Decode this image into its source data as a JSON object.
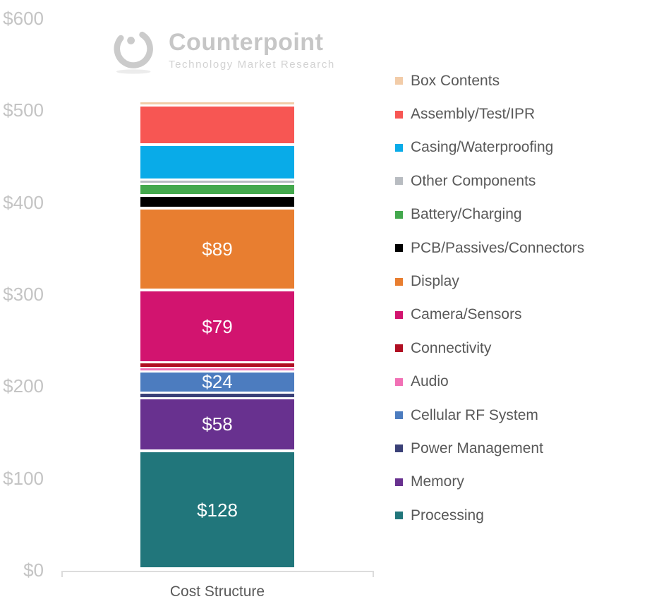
{
  "logo": {
    "name": "Counterpoint",
    "tagline": "Technology Market Research"
  },
  "chart_data": {
    "type": "bar",
    "stacked": true,
    "title": "",
    "xlabel": "Cost Structure",
    "categories": [
      "Cost Structure"
    ],
    "ylabel": "",
    "ylim": [
      0,
      600
    ],
    "grid": false,
    "ytick_prefix": "$",
    "yticks": [
      0,
      100,
      200,
      300,
      400,
      500,
      600
    ],
    "legend_position": "right",
    "legend_entries_top_to_bottom": [
      "Box Contents",
      "Assembly/Test/IPR",
      "Casing/Waterproofing",
      "Other Components",
      "Battery/Charging",
      "PCB/Passives/Connectors",
      "Display",
      "Camera/Sensors",
      "Connectivity",
      "Audio",
      "Cellular RF System",
      "Power Management",
      "Memory",
      "Processing"
    ],
    "series": [
      {
        "name": "Processing",
        "value": 128,
        "data_label": "$128",
        "color": "#21767B"
      },
      {
        "name": "Memory",
        "value": 58,
        "data_label": "$58",
        "color": "#68318F"
      },
      {
        "name": "Power Management",
        "value": 5,
        "data_label": "",
        "color": "#3A4077"
      },
      {
        "name": "Cellular RF System",
        "value": 24,
        "data_label": "$24",
        "color": "#4C7CBF"
      },
      {
        "name": "Audio",
        "value": 4,
        "data_label": "",
        "color": "#F170B5"
      },
      {
        "name": "Connectivity",
        "value": 5,
        "data_label": "",
        "color": "#B00E22"
      },
      {
        "name": "Camera/Sensors",
        "value": 79,
        "data_label": "$79",
        "color": "#D2146F"
      },
      {
        "name": "Display",
        "value": 89,
        "data_label": "$89",
        "color": "#E87E30"
      },
      {
        "name": "PCB/Passives/Connectors",
        "value": 14,
        "data_label": "",
        "color": "#000000"
      },
      {
        "name": "Battery/Charging",
        "value": 13,
        "data_label": "",
        "color": "#43A84D"
      },
      {
        "name": "Other Components",
        "value": 4,
        "data_label": "",
        "color": "#B8BCC1"
      },
      {
        "name": "Casing/Waterproofing",
        "value": 38,
        "data_label": "",
        "color": "#09ABE8"
      },
      {
        "name": "Assembly/Test/IPR",
        "value": 43,
        "data_label": "",
        "color": "#F75653"
      },
      {
        "name": "Box Contents",
        "value": 4,
        "data_label": "",
        "color": "#F2CCA8"
      }
    ]
  }
}
